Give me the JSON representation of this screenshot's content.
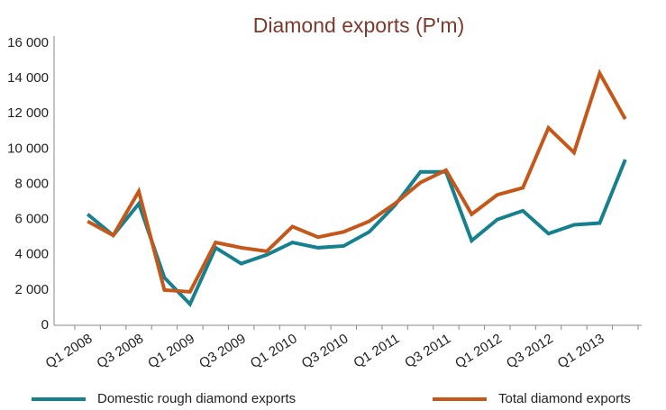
{
  "chart_data": {
    "type": "line",
    "title": "Diamond exports (P'm)",
    "categories": [
      "Q1 2008",
      null,
      "Q3 2008",
      null,
      "Q1 2009",
      null,
      "Q3 2009",
      null,
      "Q1 2010",
      null,
      "Q3 2010",
      null,
      "Q1 2011",
      null,
      "Q3 2011",
      null,
      "Q1 2012",
      null,
      "Q3 2012",
      null,
      "Q1 2013",
      null
    ],
    "series": [
      {
        "name": "Domestic rough diamond exports",
        "color": "#17808f",
        "values": [
          6300,
          5100,
          6900,
          2700,
          1200,
          4400,
          3500,
          4000,
          4700,
          4400,
          4500,
          5300,
          6800,
          8700,
          8700,
          4800,
          6000,
          6500,
          5200,
          5700,
          5800,
          9400
        ]
      },
      {
        "name": "Total diamond exports",
        "color": "#c4571a",
        "values": [
          5900,
          5100,
          7600,
          2000,
          1900,
          4700,
          4400,
          4200,
          5600,
          5000,
          5300,
          5900,
          6900,
          8100,
          8800,
          6300,
          7400,
          7800,
          11200,
          9800,
          14300,
          11700
        ]
      }
    ],
    "ylim": [
      0,
      16000
    ],
    "yticks": [
      0,
      {
        "value": 2000,
        "label": "2 000"
      },
      {
        "value": 4000,
        "label": "4 000"
      },
      {
        "value": 6000,
        "label": "6 000"
      },
      {
        "value": 8000,
        "label": "8 000"
      },
      {
        "value": 10000,
        "label": "10 000"
      },
      {
        "value": 12000,
        "label": "12 000"
      },
      {
        "value": 14000,
        "label": "14 000"
      },
      {
        "value": 16000,
        "label": "16 000"
      }
    ],
    "grid": false,
    "legend": "bottom"
  }
}
